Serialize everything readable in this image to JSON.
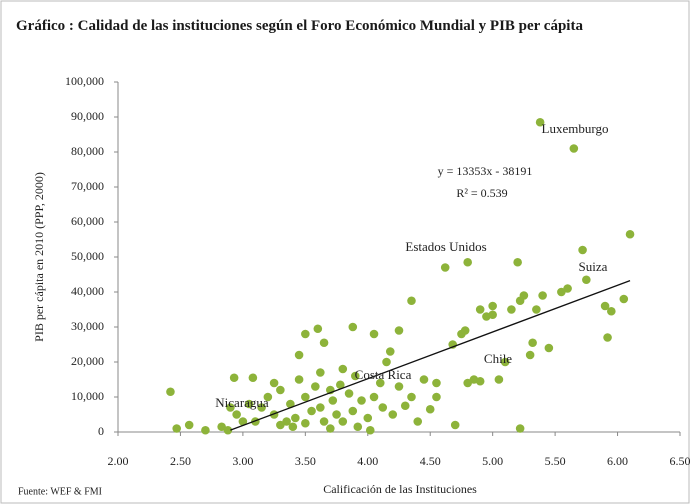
{
  "chart_data": {
    "type": "scatter",
    "title": "Gráfico :  Calidad de las instituciones según el Foro Económico Mundial y PIB  per cápita",
    "x_label": "Calificación de las Instituciones",
    "y_label": "PIB per cápita en 2010 (PPP, 2000)",
    "source": "Fuente: WEF & FMI",
    "color": "#8db33a",
    "xlim": [
      2,
      6.5
    ],
    "ylim": [
      0,
      100000
    ],
    "xticks": [
      {
        "value": 2,
        "label": "2.00"
      },
      {
        "value": 2.5,
        "label": "2.50"
      },
      {
        "value": 3,
        "label": "3.00"
      },
      {
        "value": 3.5,
        "label": "3.50"
      },
      {
        "value": 4,
        "label": "4.00"
      },
      {
        "value": 4.5,
        "label": "4.50"
      },
      {
        "value": 5,
        "label": "5.00"
      },
      {
        "value": 5.5,
        "label": "5.50"
      },
      {
        "value": 6,
        "label": "6.00"
      },
      {
        "value": 6.5,
        "label": "6.50"
      }
    ],
    "yticks": [
      0,
      {
        "value": 10000,
        "label": "10,000"
      },
      {
        "value": 20000,
        "label": "20,000"
      },
      {
        "value": 30000,
        "label": "30,000"
      },
      {
        "value": 40000,
        "label": "40,000"
      },
      {
        "value": 50000,
        "label": "50,000"
      },
      {
        "value": 60000,
        "label": "60,000"
      },
      {
        "value": 70000,
        "label": "70,000"
      },
      {
        "value": 80000,
        "label": "80,000"
      },
      {
        "value": 90000,
        "label": "90,000"
      },
      {
        "value": 100000,
        "label": "100,000"
      }
    ],
    "x": [
      2.42,
      2.47,
      2.57,
      2.7,
      2.83,
      2.88,
      2.93,
      2.9,
      2.95,
      3.0,
      3.05,
      3.08,
      3.1,
      3.15,
      3.2,
      3.25,
      3.25,
      3.3,
      3.3,
      3.35,
      3.38,
      3.4,
      3.42,
      3.45,
      3.45,
      3.5,
      3.5,
      3.5,
      3.55,
      3.58,
      3.6,
      3.62,
      3.62,
      3.65,
      3.65,
      3.7,
      3.7,
      3.72,
      3.75,
      3.78,
      3.8,
      3.8,
      3.85,
      3.88,
      3.88,
      3.9,
      3.92,
      3.95,
      4.0,
      4.02,
      4.05,
      4.05,
      4.1,
      4.12,
      4.15,
      4.18,
      4.2,
      4.25,
      4.25,
      4.3,
      4.35,
      4.35,
      4.4,
      4.45,
      4.5,
      4.55,
      4.55,
      4.62,
      4.68,
      4.7,
      4.75,
      4.78,
      4.8,
      4.8,
      4.85,
      4.9,
      4.9,
      4.95,
      5.0,
      5.0,
      5.05,
      5.1,
      5.15,
      5.2,
      5.22,
      5.22,
      5.25,
      5.3,
      5.32,
      5.35,
      5.38,
      5.4,
      5.45,
      5.55,
      5.6,
      5.65,
      5.72,
      5.75,
      5.9,
      5.92,
      5.95,
      6.05,
      6.1
    ],
    "values": [
      11500,
      1000,
      2000,
      500,
      1500,
      500,
      15500,
      7000,
      5000,
      3000,
      8000,
      15500,
      3000,
      7000,
      10000,
      5000,
      14000,
      2000,
      12000,
      3000,
      8000,
      1500,
      4000,
      22000,
      15000,
      28000,
      10000,
      2500,
      6000,
      13000,
      29500,
      17000,
      7000,
      25500,
      3000,
      12000,
      1000,
      9000,
      5000,
      13500,
      18000,
      3000,
      11000,
      30000,
      6000,
      16000,
      1500,
      9000,
      4000,
      500,
      28000,
      10000,
      14000,
      7000,
      20000,
      23000,
      5000,
      29000,
      13000,
      7500,
      37500,
      10000,
      3000,
      15000,
      6500,
      10000,
      14000,
      47000,
      25000,
      2000,
      28000,
      29000,
      48500,
      14000,
      15000,
      35000,
      14500,
      33000,
      33500,
      36000,
      15000,
      20000,
      35000,
      48500,
      37500,
      1000,
      39000,
      22000,
      25500,
      35000,
      88500,
      39000,
      24000,
      40000,
      41000,
      81000,
      52000,
      43500,
      36000,
      27000,
      34500,
      38000,
      56500
    ],
    "trendline": {
      "slope": 13353,
      "intercept": -38191,
      "xlim": [
        2.9,
        6.1
      ],
      "equation": "y = 13353x - 38191",
      "r2": "R² = 0.539"
    },
    "annotations": [
      "Luxemburgo",
      "Estados Unidos",
      "Suiza",
      "Chile",
      "Costa Rica",
      "Nicaragua"
    ]
  }
}
